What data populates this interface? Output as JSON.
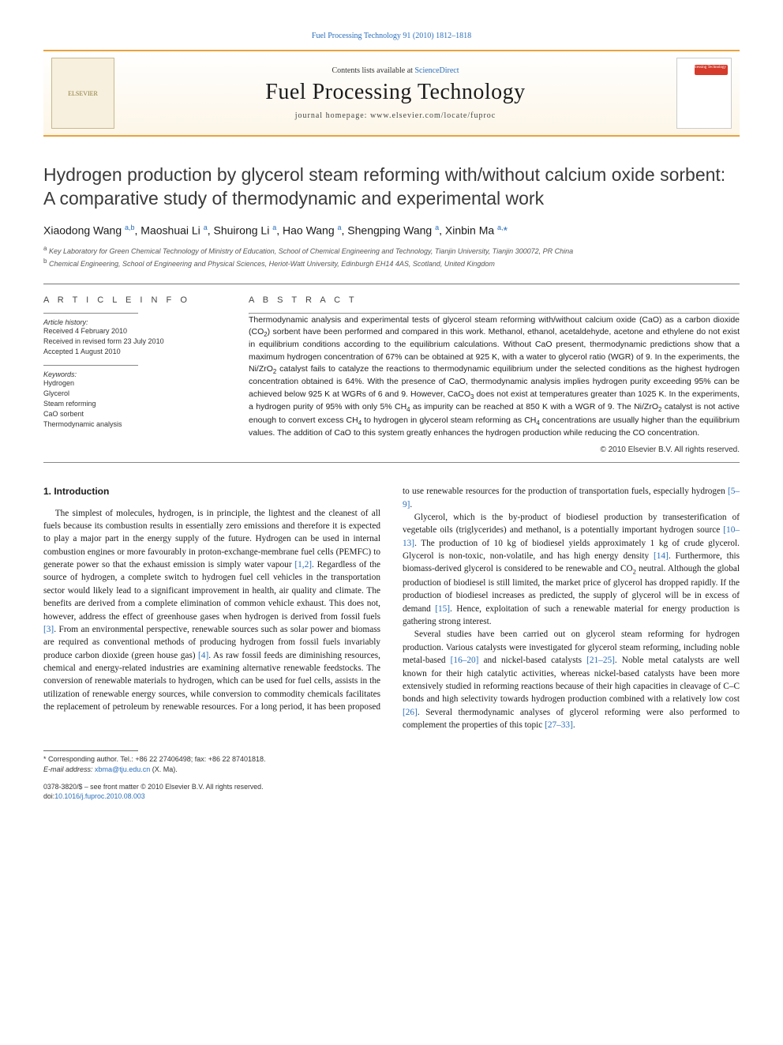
{
  "colors": {
    "link": "#2a6ebb",
    "masthead_border": "#e8a33d",
    "cover_accent": "#d63a2a",
    "text": "#1a1a1a",
    "muted": "#555555"
  },
  "top_link": {
    "text": "Fuel Processing Technology 91 (2010) 1812–1818",
    "href": "#"
  },
  "masthead": {
    "publisher_logo_text": "ELSEVIER",
    "contents_prefix": "Contents lists available at ",
    "contents_link_text": "ScienceDirect",
    "journal_title": "Fuel Processing Technology",
    "homepage_label": "journal homepage: www.elsevier.com/locate/fuproc",
    "cover_label": "Fuel Processing Technology"
  },
  "article": {
    "title": "Hydrogen production by glycerol steam reforming with/without calcium oxide sorbent: A comparative study of thermodynamic and experimental work",
    "authors_html": "Xiaodong Wang <sup>a,b</sup>, Maoshuai Li <sup>a</sup>, Shuirong Li <sup>a</sup>, Hao Wang <sup>a</sup>, Shengping Wang <sup>a</sup>, Xinbin Ma <sup>a,</sup><span class='ast'>*</span>",
    "affiliations": [
      {
        "mark": "a",
        "text": "Key Laboratory for Green Chemical Technology of Ministry of Education, School of Chemical Engineering and Technology, Tianjin University, Tianjin 300072, PR China"
      },
      {
        "mark": "b",
        "text": "Chemical Engineering, School of Engineering and Physical Sciences, Heriot-Watt University, Edinburgh EH14 4AS, Scotland, United Kingdom"
      }
    ]
  },
  "article_info": {
    "heading": "A R T I C L E   I N F O",
    "history_label": "Article history:",
    "history": [
      "Received 4 February 2010",
      "Received in revised form 23 July 2010",
      "Accepted 1 August 2010"
    ],
    "keywords_label": "Keywords:",
    "keywords": [
      "Hydrogen",
      "Glycerol",
      "Steam reforming",
      "CaO sorbent",
      "Thermodynamic analysis"
    ]
  },
  "abstract": {
    "heading": "A B S T R A C T",
    "text": "Thermodynamic analysis and experimental tests of glycerol steam reforming with/without calcium oxide (CaO) as a carbon dioxide (CO2) sorbent have been performed and compared in this work. Methanol, ethanol, acetaldehyde, acetone and ethylene do not exist in equilibrium conditions according to the equilibrium calculations. Without CaO present, thermodynamic predictions show that a maximum hydrogen concentration of 67% can be obtained at 925 K, with a water to glycerol ratio (WGR) of 9. In the experiments, the Ni/ZrO2 catalyst fails to catalyze the reactions to thermodynamic equilibrium under the selected conditions as the highest hydrogen concentration obtained is 64%. With the presence of CaO, thermodynamic analysis implies hydrogen purity exceeding 95% can be achieved below 925 K at WGRs of 6 and 9. However, CaCO3 does not exist at temperatures greater than 1025 K. In the experiments, a hydrogen purity of 95% with only 5% CH4 as impurity can be reached at 850 K with a WGR of 9. The Ni/ZrO2 catalyst is not active enough to convert excess CH4 to hydrogen in glycerol steam reforming as CH4 concentrations are usually higher than the equilibrium values. The addition of CaO to this system greatly enhances the hydrogen production while reducing the CO concentration.",
    "copyright": "© 2010 Elsevier B.V. All rights reserved."
  },
  "section1": {
    "heading": "1. Introduction",
    "paragraphs": [
      "The simplest of molecules, hydrogen, is in principle, the lightest and the cleanest of all fuels because its combustion results in essentially zero emissions and therefore it is expected to play a major part in the energy supply of the future. Hydrogen can be used in internal combustion engines or more favourably in proton-exchange-membrane fuel cells (PEMFC) to generate power so that the exhaust emission is simply water vapour [1,2]. Regardless of the source of hydrogen, a complete switch to hydrogen fuel cell vehicles in the transportation sector would likely lead to a significant improvement in health, air quality and climate. The benefits are derived from a complete elimination of common vehicle exhaust. This does not, however, address the effect of greenhouse gases when hydrogen is derived from fossil fuels [3]. From an environmental perspective, renewable sources such as solar power and biomass are required as conventional methods of producing hydrogen from fossil fuels invariably produce carbon dioxide (green house gas) [4]. As raw fossil feeds are diminishing resources, chemical and energy-related industries are examining alternative renewable feedstocks. The conversion of renewable materials to hydrogen, which can be used for fuel cells, assists in the utilization of renewable energy sources, while conversion to commodity chemicals facilitates the replacement of petroleum by renewable resources. For a long period, it has been proposed to use renewable resources for the production of transportation fuels, especially hydrogen [5–9].",
      "Glycerol, which is the by-product of biodiesel production by transesterification of vegetable oils (triglycerides) and methanol, is a potentially important hydrogen source [10–13]. The production of 10 kg of biodiesel yields approximately 1 kg of crude glycerol. Glycerol is non-toxic, non-volatile, and has high energy density [14]. Furthermore, this biomass-derived glycerol is considered to be renewable and CO2 neutral. Although the global production of biodiesel is still limited, the market price of glycerol has dropped rapidly. If the production of biodiesel increases as predicted, the supply of glycerol will be in excess of demand [15]. Hence, exploitation of such a renewable material for energy production is gathering strong interest.",
      "Several studies have been carried out on glycerol steam reforming for hydrogen production. Various catalysts were investigated for glycerol steam reforming, including noble metal-based [16–20] and nickel-based catalysts [21–25]. Noble metal catalysts are well known for their high catalytic activities, whereas nickel-based catalysts have been more extensively studied in reforming reactions because of their high capacities in cleavage of C–C bonds and high selectivity towards hydrogen production combined with a relatively low cost [26]. Several thermodynamic analyses of glycerol reforming were also performed to complement the properties of this topic [27–33]."
    ],
    "citations": [
      "[1,2]",
      "[3]",
      "[4]",
      "[5–9]",
      "[10–13]",
      "[14]",
      "[15]",
      "[16–20]",
      "[21–25]",
      "[26]",
      "[27–33]"
    ]
  },
  "footer": {
    "corresponding_label": "* Corresponding author. Tel.: +86 22 27406498; fax: +86 22 87401818.",
    "email_label": "E-mail address:",
    "email": "xbma@tju.edu.cn",
    "email_suffix": "(X. Ma).",
    "issn_line": "0378-3820/$ – see front matter © 2010 Elsevier B.V. All rights reserved.",
    "doi_prefix": "doi:",
    "doi": "10.1016/j.fuproc.2010.08.003"
  }
}
